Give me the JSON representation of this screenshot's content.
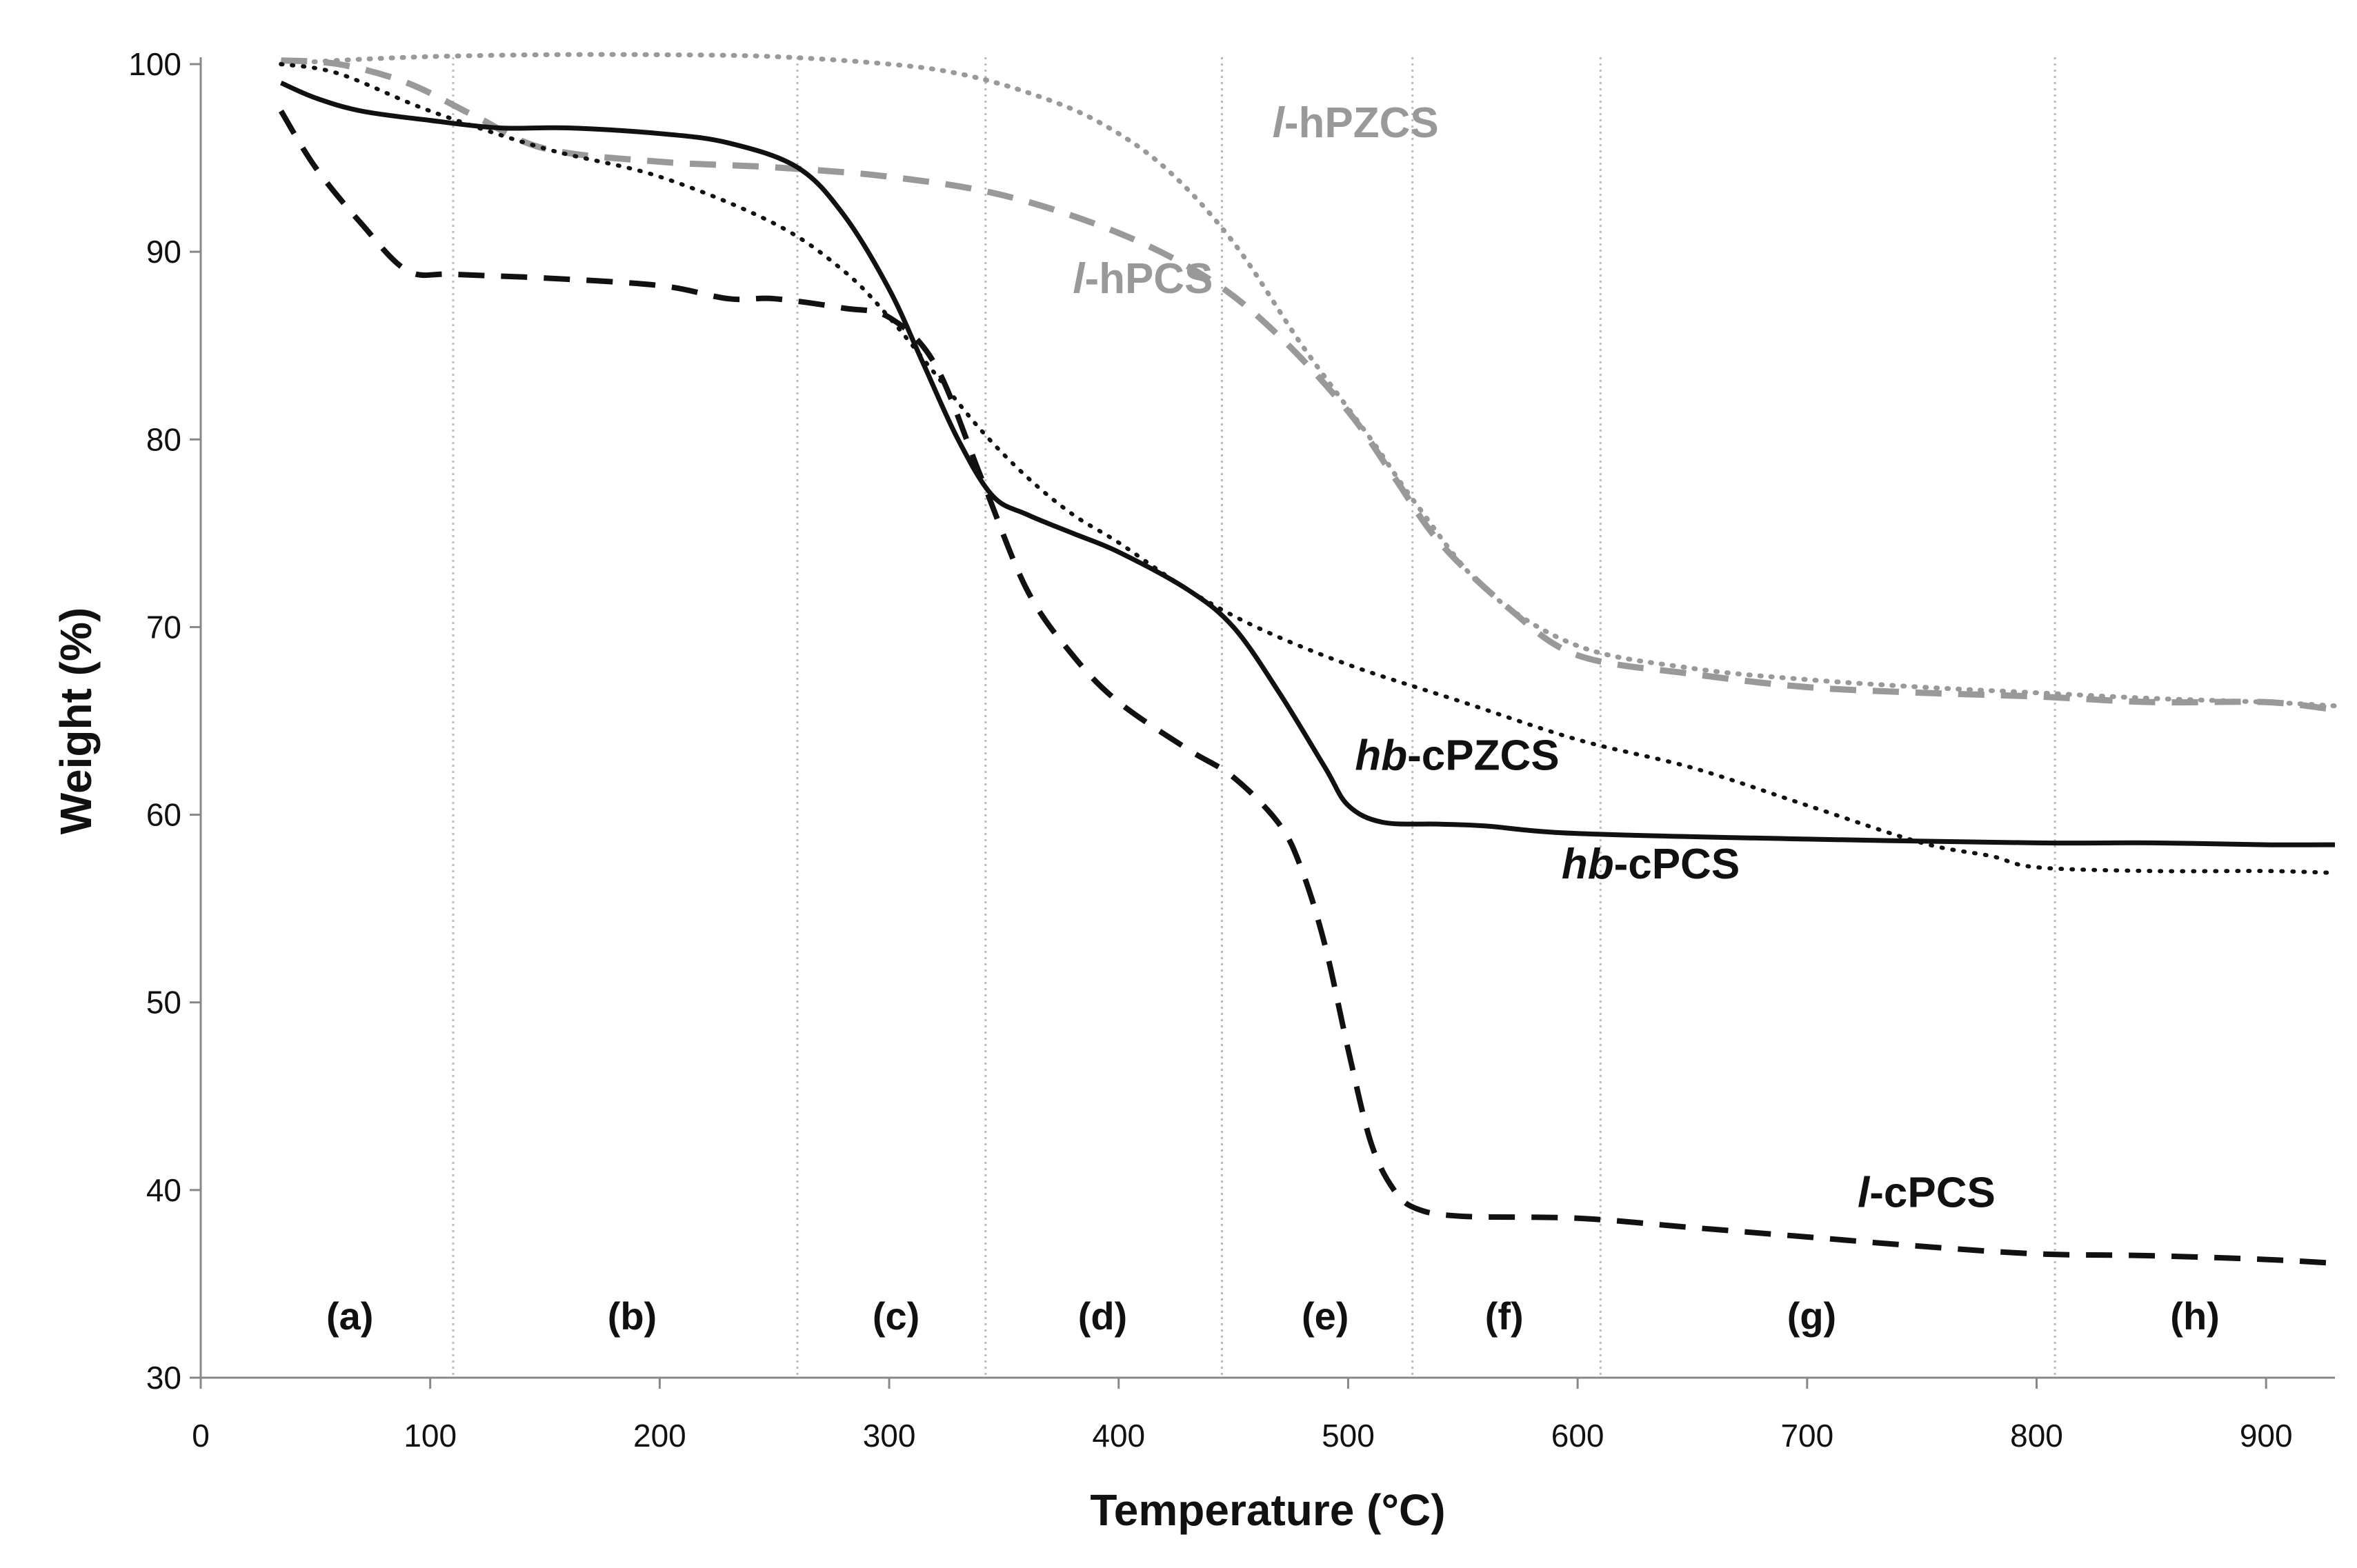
{
  "chart_data": {
    "type": "line",
    "title": "",
    "xlabel": "Temperature (°C)",
    "ylabel": "Weight (%)",
    "xlim": [
      0,
      930
    ],
    "ylim": [
      30,
      100
    ],
    "x_ticks": [
      0,
      100,
      200,
      300,
      400,
      500,
      600,
      700,
      800,
      900
    ],
    "y_ticks": [
      30,
      40,
      50,
      60,
      70,
      80,
      90,
      100
    ],
    "grid": false,
    "colors": {
      "black": "#111111",
      "gray": "#999999",
      "axis": "#888888",
      "region_line": "#bbbbbb"
    },
    "region_boundaries": [
      110,
      260,
      342,
      445,
      528,
      610,
      808
    ],
    "regions": [
      {
        "label": "(a)",
        "x": 65
      },
      {
        "label": "(b)",
        "x": 188
      },
      {
        "label": "(c)",
        "x": 303
      },
      {
        "label": "(d)",
        "x": 393
      },
      {
        "label": "(e)",
        "x": 490
      },
      {
        "label": "(f)",
        "x": 568
      },
      {
        "label": "(g)",
        "x": 702
      },
      {
        "label": "(h)",
        "x": 869
      }
    ],
    "series": [
      {
        "name": "l-hPZCS",
        "label_prefix": "l",
        "label_suffix": "-hPZCS",
        "color": "gray",
        "style": "dotted",
        "label_x": 467,
        "label_y": 96.1,
        "x": [
          35,
          60,
          100,
          150,
          200,
          250,
          300,
          330,
          360,
          390,
          420,
          450,
          480,
          510,
          530,
          560,
          600,
          650,
          700,
          750,
          800,
          850,
          900,
          930
        ],
        "y": [
          100.0,
          100.2,
          100.4,
          100.5,
          100.5,
          100.4,
          100.0,
          99.5,
          98.5,
          97.0,
          94.5,
          90.5,
          85.0,
          80.0,
          76.5,
          72.0,
          69.0,
          67.8,
          67.2,
          66.8,
          66.5,
          66.2,
          66.0,
          65.8
        ]
      },
      {
        "name": "l-hPCS",
        "label_prefix": "l",
        "label_suffix": "-hPCS",
        "color": "gray",
        "style": "dashed",
        "label_x": 380,
        "label_y": 87.8,
        "x": [
          35,
          60,
          90,
          120,
          150,
          200,
          250,
          300,
          350,
          400,
          440,
          470,
          500,
          520,
          540,
          570,
          600,
          650,
          700,
          750,
          800,
          850,
          900,
          930
        ],
        "y": [
          100.2,
          100.0,
          99.0,
          97.2,
          95.5,
          94.8,
          94.5,
          94.0,
          93.0,
          91.0,
          88.5,
          85.5,
          81.5,
          78.0,
          74.5,
          71.0,
          68.5,
          67.5,
          66.8,
          66.5,
          66.3,
          66.0,
          66.0,
          65.6
        ]
      },
      {
        "name": "hb-cPZCS",
        "label_prefix": "hb",
        "label_suffix": "-cPZCS",
        "color": "black",
        "style": "solid",
        "label_x": 503,
        "label_y": 62.4,
        "x": [
          35,
          50,
          70,
          100,
          130,
          160,
          200,
          230,
          260,
          280,
          300,
          315,
          330,
          345,
          360,
          380,
          400,
          430,
          450,
          470,
          490,
          500,
          515,
          540,
          560,
          600,
          700,
          800,
          850,
          900,
          930
        ],
        "y": [
          99.0,
          98.2,
          97.5,
          97.0,
          96.6,
          96.6,
          96.3,
          95.8,
          94.5,
          92.0,
          88.0,
          84.0,
          80.0,
          77.0,
          76.0,
          75.0,
          74.0,
          72.0,
          70.0,
          66.5,
          62.5,
          60.5,
          59.6,
          59.5,
          59.4,
          59.0,
          58.7,
          58.5,
          58.5,
          58.4,
          58.4
        ]
      },
      {
        "name": "hb-cPCS",
        "label_prefix": "hb",
        "label_suffix": "-cPCS",
        "color": "black",
        "style": "dotted",
        "label_x": 593,
        "label_y": 56.6,
        "x": [
          35,
          60,
          100,
          150,
          200,
          250,
          280,
          300,
          320,
          340,
          360,
          380,
          400,
          430,
          460,
          500,
          550,
          600,
          650,
          700,
          750,
          780,
          800,
          850,
          900,
          930
        ],
        "y": [
          100.0,
          99.5,
          97.5,
          95.5,
          94.0,
          91.5,
          89.0,
          86.5,
          83.5,
          80.5,
          78.0,
          76.0,
          74.5,
          72.0,
          70.0,
          68.0,
          66.0,
          64.0,
          62.5,
          60.5,
          58.5,
          57.8,
          57.2,
          57.0,
          57.0,
          56.9
        ]
      },
      {
        "name": "l-cPCS",
        "label_prefix": "l",
        "label_suffix": "-cPCS",
        "color": "black",
        "style": "dashed",
        "label_x": 722,
        "label_y": 39.1,
        "x": [
          35,
          50,
          70,
          90,
          110,
          150,
          200,
          230,
          250,
          280,
          300,
          320,
          340,
          360,
          380,
          400,
          430,
          450,
          470,
          480,
          490,
          500,
          510,
          520,
          530,
          550,
          600,
          650,
          700,
          750,
          800,
          850,
          900,
          930
        ],
        "y": [
          97.5,
          94.5,
          91.5,
          89.0,
          88.8,
          88.6,
          88.2,
          87.5,
          87.5,
          87.0,
          86.5,
          84.0,
          78.0,
          72.0,
          68.5,
          66.0,
          63.5,
          62.0,
          59.5,
          57.0,
          53.0,
          47.5,
          42.5,
          40.0,
          39.0,
          38.6,
          38.5,
          38.0,
          37.5,
          37.0,
          36.6,
          36.5,
          36.3,
          36.1
        ]
      }
    ]
  }
}
